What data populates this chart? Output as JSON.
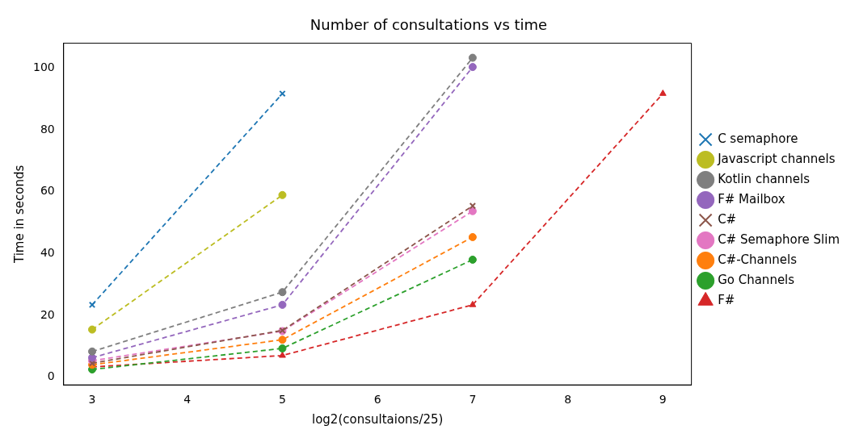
{
  "chart_data": {
    "type": "line",
    "title": "Number of consultations vs time",
    "xlabel": "log2(consultaions/25)",
    "ylabel": "Time in seconds",
    "xlim": [
      2.7,
      9.3
    ],
    "xticks": [
      3,
      4,
      5,
      6,
      7,
      8,
      9
    ],
    "ylim": [
      -2.5,
      108
    ],
    "yticks": [
      0,
      20,
      40,
      60,
      80,
      100
    ],
    "grid": false,
    "legend": "right",
    "line_style": "dashed",
    "series": [
      {
        "name": "C semaphore",
        "color": "#1f77b4",
        "marker": "cross",
        "x": [
          3,
          5
        ],
        "values": [
          23.4,
          91.7
        ]
      },
      {
        "name": "Javascript channels",
        "color": "#bcbd22",
        "marker": "circle",
        "x": [
          3,
          5
        ],
        "values": [
          15.4,
          58.9
        ]
      },
      {
        "name": "Kotlin channels",
        "color": "#7f7f7f",
        "marker": "circle",
        "x": [
          3,
          5,
          7
        ],
        "values": [
          8.3,
          27.5,
          103.3
        ]
      },
      {
        "name": "F# Mailbox",
        "color": "#9467bd",
        "marker": "circle",
        "x": [
          3,
          5,
          7
        ],
        "values": [
          6.3,
          23.4,
          100.3
        ]
      },
      {
        "name": "C#",
        "color": "#8c564b",
        "marker": "cross",
        "x": [
          3,
          5,
          7
        ],
        "values": [
          4.5,
          15.1,
          55.4
        ]
      },
      {
        "name": "C# Semaphore Slim",
        "color": "#e377c2",
        "marker": "circle",
        "x": [
          3,
          5,
          7
        ],
        "values": [
          5.3,
          14.9,
          53.7
        ]
      },
      {
        "name": "C#-Channels",
        "color": "#ff7f0e",
        "marker": "circle",
        "x": [
          3,
          5,
          7
        ],
        "values": [
          4,
          12.1,
          45.3
        ]
      },
      {
        "name": "Go Channels",
        "color": "#2ca02c",
        "marker": "circle",
        "x": [
          3,
          5,
          7
        ],
        "values": [
          2.5,
          9.3,
          38
        ]
      },
      {
        "name": "F#",
        "color": "#d62728",
        "marker": "triangle",
        "x": [
          3,
          5,
          7,
          9
        ],
        "values": [
          3.3,
          7,
          23.4,
          91.7
        ]
      }
    ]
  }
}
